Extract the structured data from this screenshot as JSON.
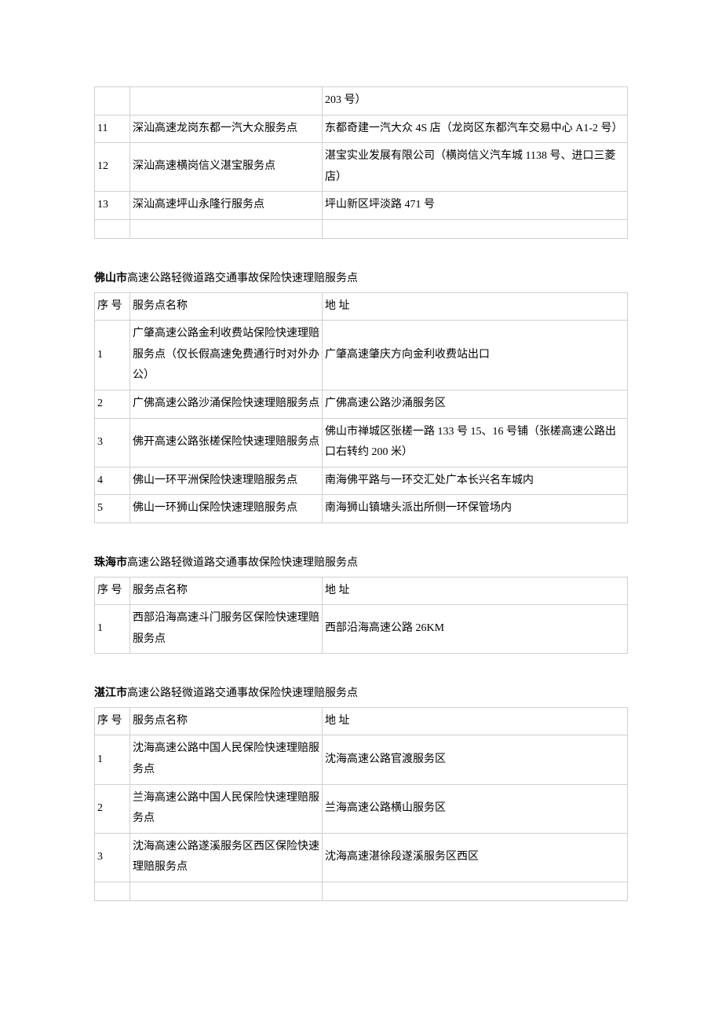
{
  "table1": {
    "rows": [
      {
        "num": "",
        "name": "",
        "addr": "203 号）"
      },
      {
        "num": "11",
        "name": "深汕高速龙岗东都一汽大众服务点",
        "addr": "东都奇建一汽大众 4S 店（龙岗区东都汽车交易中心 A1-2 号）"
      },
      {
        "num": "12",
        "name": "深汕高速横岗信义湛宝服务点",
        "addr": "湛宝实业发展有限公司（横岗信义汽车城 1138 号、进口三菱店）"
      },
      {
        "num": "13",
        "name": "深汕高速坪山永隆行服务点",
        "addr": "坪山新区坪淡路 471 号"
      }
    ]
  },
  "section2": {
    "city": "佛山市",
    "title_suffix": "高速公路轻微道路交通事故保险快速理赔服务点",
    "header": {
      "num": "序  号",
      "name": "服务点名称",
      "addr": "地 址"
    },
    "rows": [
      {
        "num": "1",
        "name": "广肇高速公路金利收费站保险快速理赔服务点（仅长假高速免费通行时对外办公）",
        "addr": "广肇高速肇庆方向金利收费站出口"
      },
      {
        "num": "2",
        "name": "广佛高速公路沙涌保险快速理赔服务点",
        "addr": "广佛高速公路沙涌服务区"
      },
      {
        "num": "3",
        "name": "佛开高速公路张槎保险快速理赔服务点",
        "addr": "佛山市禅城区张槎一路 133 号 15、16 号铺（张槎高速公路出口右转约 200 米）"
      },
      {
        "num": "4",
        "name": "佛山一环平洲保险快速理赔服务点",
        "addr": "南海佛平路与一环交汇处广本长兴名车城内"
      },
      {
        "num": "5",
        "name": "佛山一环狮山保险快速理赔服务点",
        "addr": "南海狮山镇塘头派出所侧一环保管场内"
      }
    ]
  },
  "section3": {
    "city": "珠海市",
    "title_suffix": "高速公路轻微道路交通事故保险快速理赔服务点",
    "header": {
      "num": "序  号",
      "name": "服务点名称",
      "addr": "地 址"
    },
    "rows": [
      {
        "num": "1",
        "name": "西部沿海高速斗门服务区保险快速理赔服务点",
        "addr": "西部沿海高速公路 26KM"
      }
    ]
  },
  "section4": {
    "city": "湛江市",
    "title_suffix": "高速公路轻微道路交通事故保险快速理赔服务点",
    "header": {
      "num": "序  号",
      "name": "服务点名称",
      "addr": "地 址"
    },
    "rows": [
      {
        "num": "1",
        "name": "沈海高速公路中国人民保险快速理赔服务点",
        "addr": "沈海高速公路官渡服务区"
      },
      {
        "num": "2",
        "name": "兰海高速公路中国人民保险快速理赔服务点",
        "addr": "兰海高速公路横山服务区"
      },
      {
        "num": "3",
        "name": "沈海高速公路遂溪服务区西区保险快速理赔服务点",
        "addr": "沈海高速湛徐段遂溪服务区西区"
      }
    ]
  },
  "styling": {
    "border_color": "#d0d0d0",
    "text_color": "#000000",
    "background_color": "#ffffff",
    "font_size": 14,
    "line_height": 1.9,
    "col_widths": {
      "num": 45,
      "name": 245
    }
  }
}
